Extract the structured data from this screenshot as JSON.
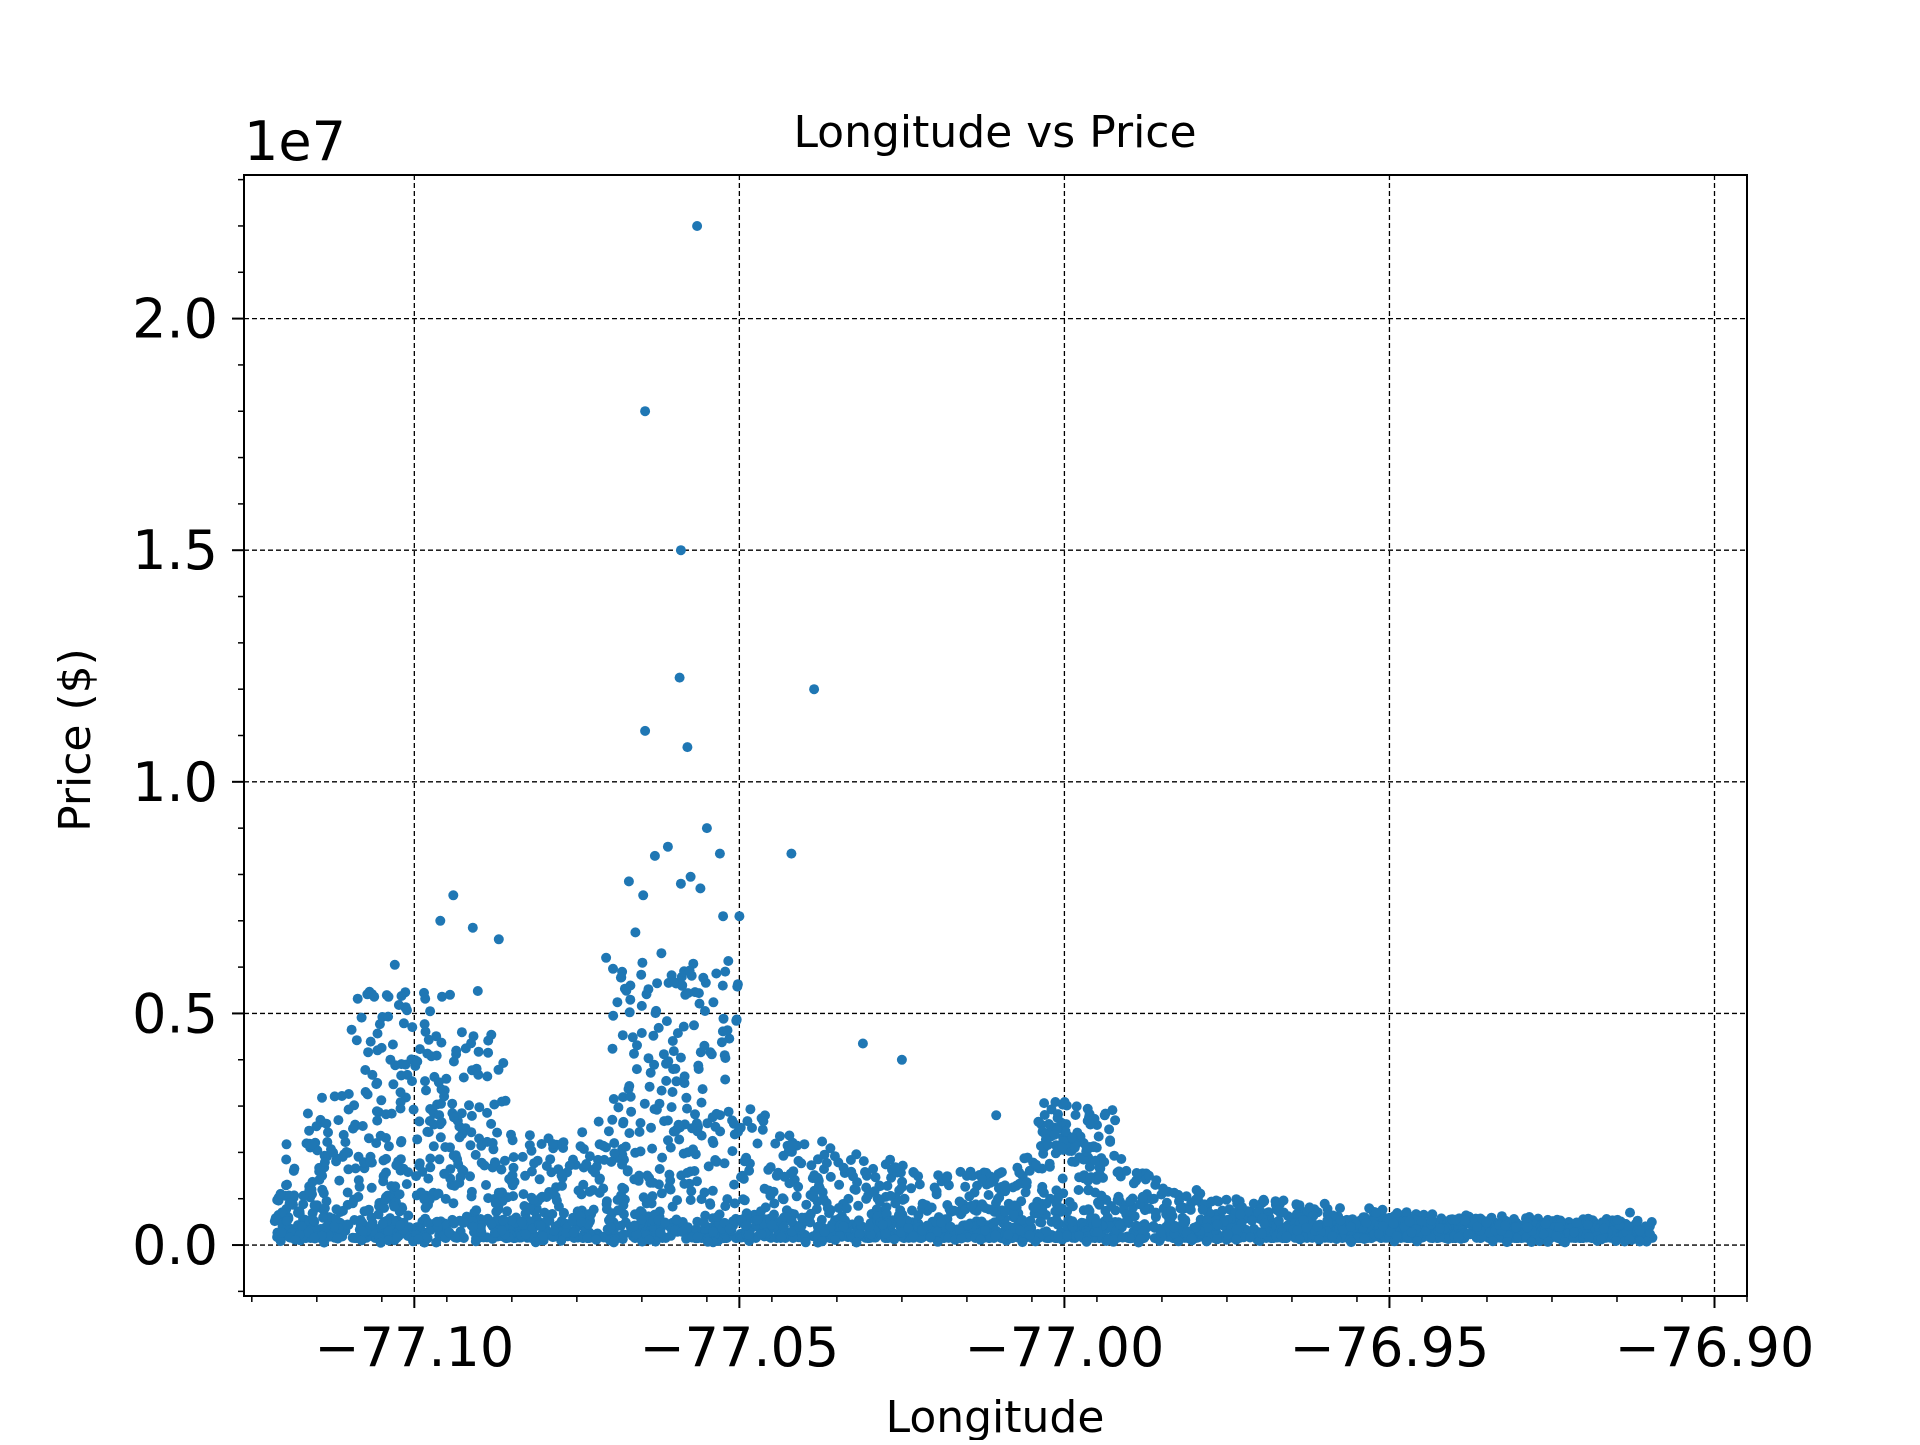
{
  "chart_data": {
    "type": "scatter",
    "title": "Longitude vs Price",
    "xlabel": "Longitude",
    "ylabel": "Price ($)",
    "y_offset_label": "1e7",
    "xlim": [
      -77.1262,
      -76.895
    ],
    "ylim": [
      -0.11,
      2.31
    ],
    "x_ticks": [
      -77.1,
      -77.05,
      -77.0,
      -76.95,
      -76.9
    ],
    "x_tick_labels": [
      "−77.10",
      "−77.05",
      "−77.00",
      "−76.95",
      "−76.90"
    ],
    "y_ticks": [
      0.0,
      0.5,
      1.0,
      1.5,
      2.0
    ],
    "y_tick_labels": [
      "0.0",
      "0.5",
      "1.0",
      "1.5",
      "2.0"
    ],
    "grid": true,
    "marker_color": "#1f77b4",
    "outliers": [
      {
        "x": -77.0565,
        "y": 2.2
      },
      {
        "x": -77.0645,
        "y": 1.8
      },
      {
        "x": -77.059,
        "y": 1.5
      },
      {
        "x": -77.0592,
        "y": 1.225
      },
      {
        "x": -77.0645,
        "y": 1.11
      },
      {
        "x": -77.058,
        "y": 1.075
      },
      {
        "x": -77.0385,
        "y": 1.2
      },
      {
        "x": -77.055,
        "y": 0.9
      },
      {
        "x": -77.042,
        "y": 0.845
      },
      {
        "x": -77.053,
        "y": 0.845
      },
      {
        "x": -77.061,
        "y": 0.86
      },
      {
        "x": -77.063,
        "y": 0.84
      },
      {
        "x": -77.067,
        "y": 0.785
      },
      {
        "x": -77.0648,
        "y": 0.755
      },
      {
        "x": -77.059,
        "y": 0.78
      },
      {
        "x": -77.0575,
        "y": 0.795
      },
      {
        "x": -77.056,
        "y": 0.77
      },
      {
        "x": -77.0525,
        "y": 0.71
      },
      {
        "x": -77.05,
        "y": 0.71
      },
      {
        "x": -77.066,
        "y": 0.675
      },
      {
        "x": -77.094,
        "y": 0.755
      },
      {
        "x": -77.096,
        "y": 0.7
      },
      {
        "x": -77.091,
        "y": 0.685
      },
      {
        "x": -77.087,
        "y": 0.66
      },
      {
        "x": -77.103,
        "y": 0.605
      },
      {
        "x": -77.0705,
        "y": 0.62
      },
      {
        "x": -77.062,
        "y": 0.63
      },
      {
        "x": -77.031,
        "y": 0.435
      },
      {
        "x": -77.025,
        "y": 0.4
      },
      {
        "x": -77.0105,
        "y": 0.28
      },
      {
        "x": -76.987,
        "y": 0.15
      },
      {
        "x": -76.913,
        "y": 0.07
      }
    ]
  }
}
